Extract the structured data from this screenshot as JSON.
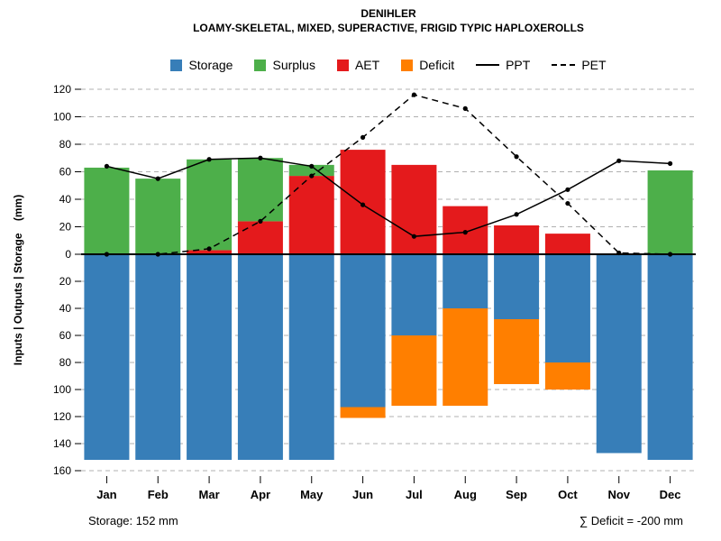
{
  "chart_data": {
    "type": "bar",
    "title": "DENIHLER",
    "subtitle": "LOAMY-SKELETAL, MIXED, SUPERACTIVE, FRIGID TYPIC HAPLOXEROLLS",
    "categories": [
      "Jan",
      "Feb",
      "Mar",
      "Apr",
      "May",
      "Jun",
      "Jul",
      "Aug",
      "Sep",
      "Oct",
      "Nov",
      "Dec"
    ],
    "ylabel": "Inputs | Outputs | Storage    (mm)",
    "y_axis": {
      "top_max": 120,
      "bottom_max": 160,
      "tick_step": 20,
      "top_ticks": [
        120,
        100,
        80,
        60,
        40,
        20,
        0
      ],
      "bottom_ticks": [
        20,
        40,
        60,
        80,
        100,
        120,
        140,
        160
      ],
      "grid": "dashed"
    },
    "series": [
      {
        "name": "Surplus",
        "kind": "bar",
        "direction": "up",
        "color": "#4DAF4A",
        "values": [
          63,
          55,
          66,
          46,
          8,
          0,
          0,
          0,
          0,
          0,
          0,
          61
        ]
      },
      {
        "name": "AET",
        "kind": "bar",
        "direction": "up",
        "color": "#E41A1C",
        "values": [
          0,
          0,
          3,
          24,
          57,
          76,
          65,
          35,
          21,
          15,
          0,
          0
        ]
      },
      {
        "name": "Storage",
        "kind": "bar",
        "direction": "down",
        "color": "#377EB8",
        "values": [
          152,
          152,
          152,
          152,
          152,
          113,
          60,
          40,
          48,
          80,
          147,
          152
        ]
      },
      {
        "name": "Deficit",
        "kind": "bar",
        "direction": "down",
        "color": "#FF7F00",
        "values": [
          0,
          0,
          0,
          0,
          0,
          8,
          52,
          72,
          48,
          20,
          0,
          0
        ]
      },
      {
        "name": "PPT",
        "kind": "line",
        "style": "solid",
        "color": "#000000",
        "values": [
          64,
          55,
          69,
          70,
          64,
          36,
          13,
          16,
          29,
          47,
          68,
          66
        ]
      },
      {
        "name": "PET",
        "kind": "line",
        "style": "dashed",
        "color": "#000000",
        "values": [
          0,
          0,
          4,
          24,
          57,
          85,
          116,
          106,
          71,
          37,
          1,
          0
        ]
      }
    ],
    "legend_position": "top"
  },
  "legend": {
    "items": [
      {
        "label": "Storage",
        "color": "#377EB8",
        "type": "swatch"
      },
      {
        "label": "Surplus",
        "color": "#4DAF4A",
        "type": "swatch"
      },
      {
        "label": "AET",
        "color": "#E41A1C",
        "type": "swatch"
      },
      {
        "label": "Deficit",
        "color": "#FF7F00",
        "type": "swatch"
      },
      {
        "label": "PPT",
        "type": "line-solid"
      },
      {
        "label": "PET",
        "type": "line-dashed"
      }
    ]
  },
  "footer": {
    "storage_note": "Storage: 152 mm",
    "deficit_note": "∑ Deficit = -200 mm"
  }
}
